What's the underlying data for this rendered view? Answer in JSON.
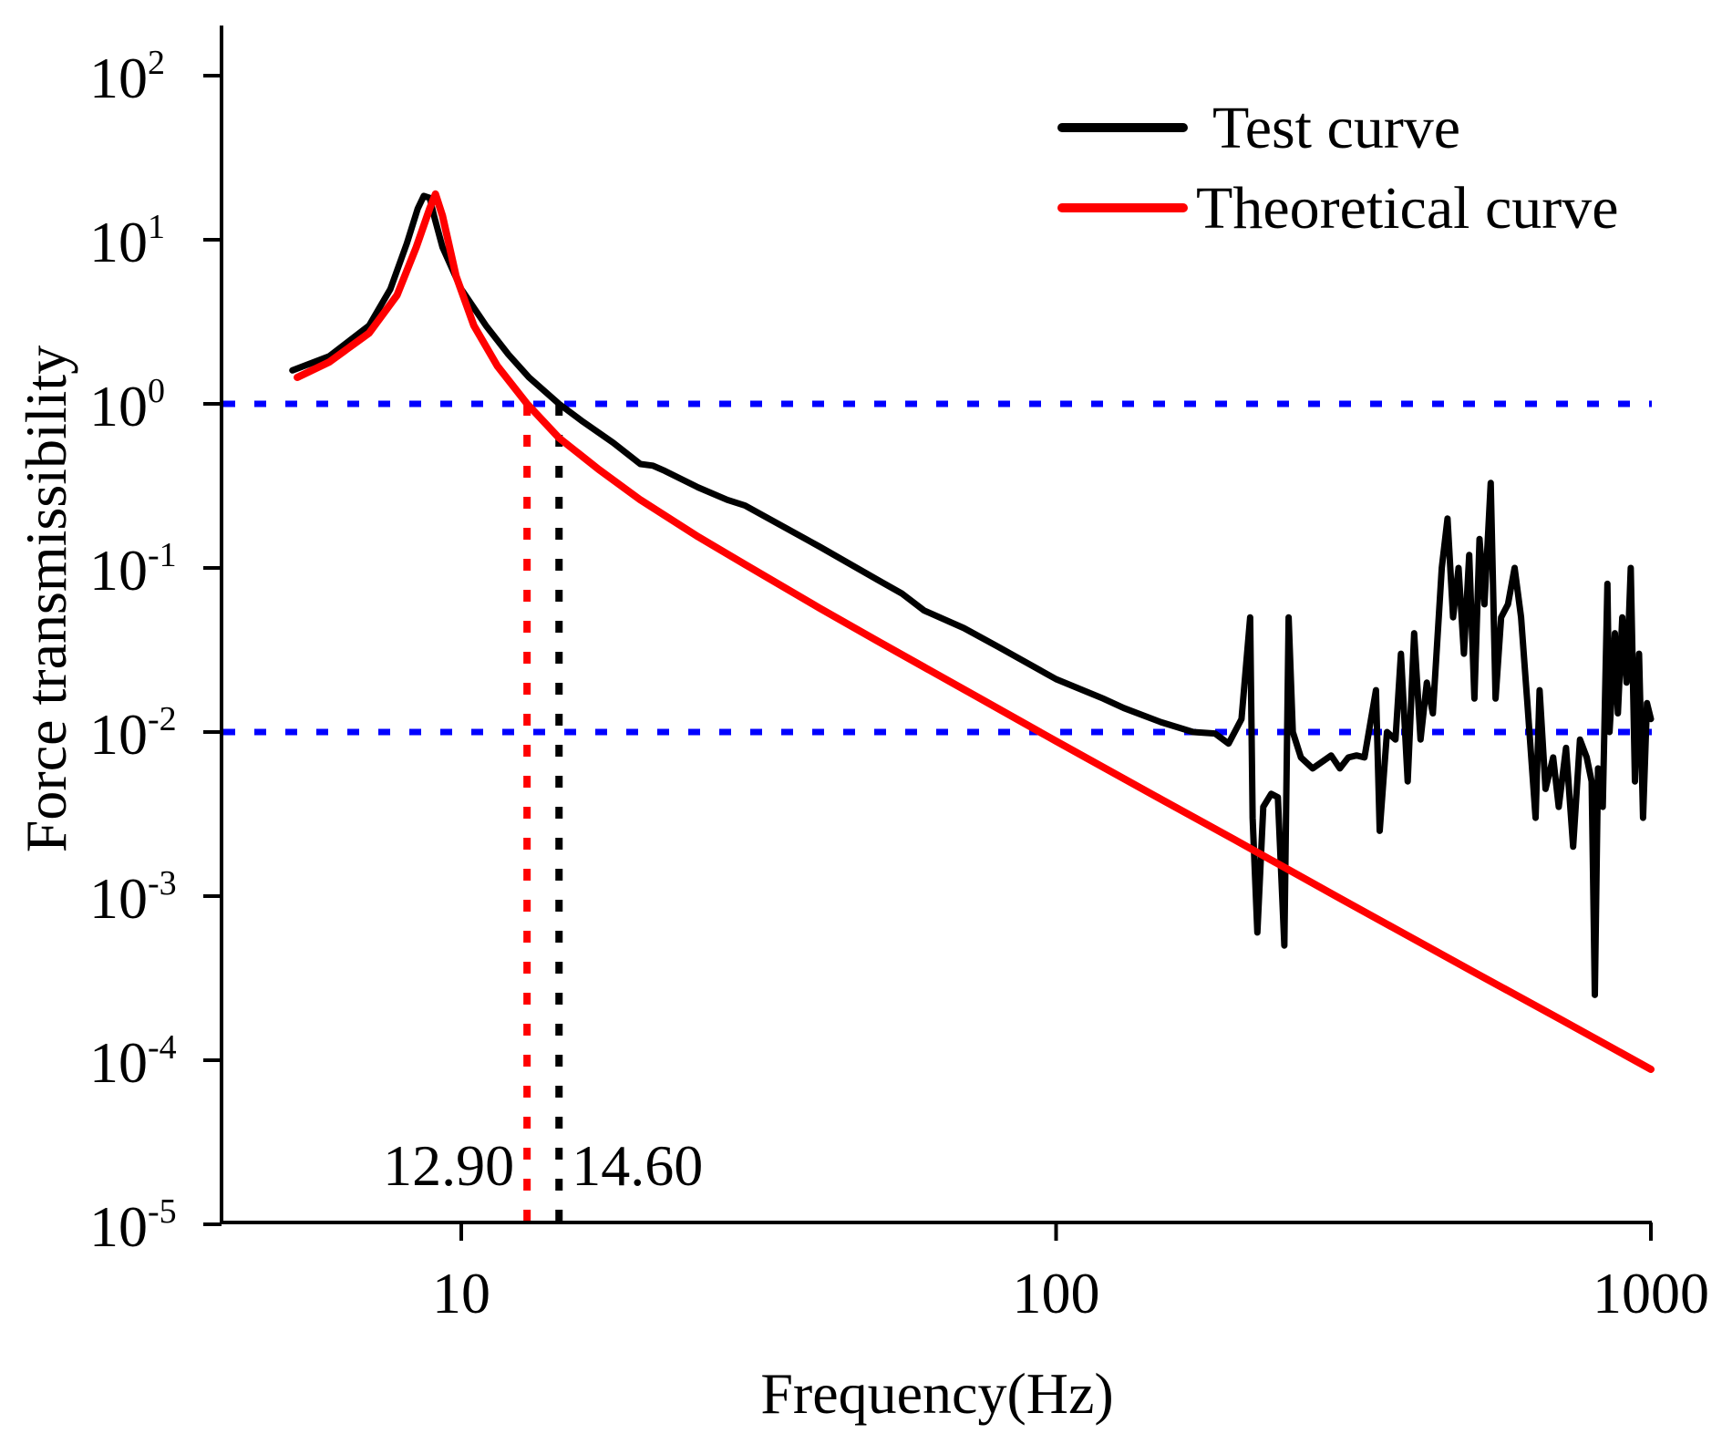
{
  "chart_data": {
    "type": "line",
    "xscale": "log",
    "yscale": "log",
    "xlabel": "Frequency(Hz)",
    "ylabel": "Force transmissibility",
    "xlim": [
      4.1,
      1000
    ],
    "ylim": [
      1e-05,
      200
    ],
    "x_ticks": [
      {
        "value": 10,
        "label": "10"
      },
      {
        "value": 100,
        "label": "100"
      },
      {
        "value": 1000,
        "label": "1000"
      }
    ],
    "y_ticks": [
      {
        "value": 100,
        "base": "10",
        "exp": "2"
      },
      {
        "value": 10,
        "base": "10",
        "exp": "1"
      },
      {
        "value": 1,
        "base": "10",
        "exp": "0"
      },
      {
        "value": 0.1,
        "base": "10",
        "exp": "-1"
      },
      {
        "value": 0.01,
        "base": "10",
        "exp": "-2"
      },
      {
        "value": 0.001,
        "base": "10",
        "exp": "-3"
      },
      {
        "value": 0.0001,
        "base": "10",
        "exp": "-4"
      },
      {
        "value": 1e-05,
        "base": "10",
        "exp": "-5"
      }
    ],
    "legend": {
      "position": "top-right"
    },
    "series": [
      {
        "name": "Test curve",
        "color": "#000000",
        "points": [
          [
            5.2,
            1.6
          ],
          [
            6.0,
            1.95
          ],
          [
            7.0,
            3.0
          ],
          [
            7.6,
            5.0
          ],
          [
            8.1,
            9.5
          ],
          [
            8.45,
            15.5
          ],
          [
            8.65,
            18.5
          ],
          [
            8.85,
            18.0
          ],
          [
            9.0,
            14.0
          ],
          [
            9.3,
            9.0
          ],
          [
            10.0,
            5.0
          ],
          [
            11.0,
            3.0
          ],
          [
            12.0,
            2.0
          ],
          [
            13.0,
            1.45
          ],
          [
            14.6,
            1.0
          ],
          [
            16.0,
            0.78
          ],
          [
            18.0,
            0.58
          ],
          [
            20.0,
            0.43
          ],
          [
            21.0,
            0.42
          ],
          [
            22.0,
            0.39
          ],
          [
            25.0,
            0.31
          ],
          [
            28.0,
            0.26
          ],
          [
            30.0,
            0.24
          ],
          [
            40.0,
            0.135
          ],
          [
            50.0,
            0.085
          ],
          [
            55.0,
            0.07
          ],
          [
            60.0,
            0.055
          ],
          [
            70.0,
            0.043
          ],
          [
            80.0,
            0.033
          ],
          [
            100.0,
            0.021
          ],
          [
            120.0,
            0.016
          ],
          [
            130.0,
            0.014
          ],
          [
            150.0,
            0.0115
          ],
          [
            170.0,
            0.01
          ],
          [
            185.0,
            0.0098
          ],
          [
            195.0,
            0.0085
          ],
          [
            205.0,
            0.012
          ],
          [
            212.0,
            0.05
          ],
          [
            214.0,
            0.003
          ],
          [
            218.0,
            0.0006
          ],
          [
            223.0,
            0.0035
          ],
          [
            230.0,
            0.0042
          ],
          [
            236.0,
            0.004
          ],
          [
            242.0,
            0.0005
          ],
          [
            246.0,
            0.05
          ],
          [
            250.0,
            0.01
          ],
          [
            258.0,
            0.007
          ],
          [
            270.0,
            0.006
          ],
          [
            290.0,
            0.0072
          ],
          [
            300.0,
            0.006
          ],
          [
            310.0,
            0.007
          ],
          [
            320.0,
            0.0072
          ],
          [
            330.0,
            0.007
          ],
          [
            345.0,
            0.018
          ],
          [
            350.0,
            0.0025
          ],
          [
            360.0,
            0.01
          ],
          [
            372.0,
            0.009
          ],
          [
            380.0,
            0.03
          ],
          [
            390.0,
            0.005
          ],
          [
            400.0,
            0.04
          ],
          [
            410.0,
            0.009
          ],
          [
            420.0,
            0.02
          ],
          [
            430.0,
            0.013
          ],
          [
            445.0,
            0.1
          ],
          [
            455.0,
            0.2
          ],
          [
            465.0,
            0.05
          ],
          [
            475.0,
            0.1
          ],
          [
            485.0,
            0.03
          ],
          [
            495.0,
            0.12
          ],
          [
            505.0,
            0.016
          ],
          [
            515.0,
            0.15
          ],
          [
            525.0,
            0.06
          ],
          [
            538.0,
            0.33
          ],
          [
            548.0,
            0.016
          ],
          [
            560.0,
            0.05
          ],
          [
            575.0,
            0.06
          ],
          [
            590.0,
            0.1
          ],
          [
            605.0,
            0.05
          ],
          [
            620.0,
            0.015
          ],
          [
            640.0,
            0.003
          ],
          [
            650.0,
            0.018
          ],
          [
            665.0,
            0.0045
          ],
          [
            685.0,
            0.007
          ],
          [
            700.0,
            0.0035
          ],
          [
            720.0,
            0.008
          ],
          [
            740.0,
            0.002
          ],
          [
            760.0,
            0.009
          ],
          [
            780.0,
            0.007
          ],
          [
            795.0,
            0.005
          ],
          [
            805.0,
            0.00025
          ],
          [
            815.0,
            0.006
          ],
          [
            830.0,
            0.0035
          ],
          [
            845.0,
            0.08
          ],
          [
            852.0,
            0.01
          ],
          [
            860.0,
            0.018
          ],
          [
            870.0,
            0.04
          ],
          [
            880.0,
            0.013
          ],
          [
            895.0,
            0.05
          ],
          [
            910.0,
            0.02
          ],
          [
            925.0,
            0.1
          ],
          [
            940.0,
            0.005
          ],
          [
            955.0,
            0.03
          ],
          [
            970.0,
            0.003
          ],
          [
            985.0,
            0.015
          ],
          [
            1000.0,
            0.012
          ]
        ]
      },
      {
        "name": "Theoretical curve",
        "color": "#ff0000",
        "points": [
          [
            5.3,
            1.45
          ],
          [
            6.0,
            1.8
          ],
          [
            7.0,
            2.7
          ],
          [
            7.8,
            4.6
          ],
          [
            8.4,
            9.0
          ],
          [
            8.85,
            15.5
          ],
          [
            9.05,
            19.0
          ],
          [
            9.3,
            14.0
          ],
          [
            9.8,
            6.0
          ],
          [
            10.5,
            3.0
          ],
          [
            11.5,
            1.7
          ],
          [
            12.9,
            1.0
          ],
          [
            14.6,
            0.62
          ],
          [
            17.0,
            0.4
          ],
          [
            20.0,
            0.26
          ],
          [
            25.0,
            0.155
          ],
          [
            30.0,
            0.105
          ],
          [
            40.0,
            0.057
          ],
          [
            50.0,
            0.036
          ],
          [
            70.0,
            0.0182
          ],
          [
            100.0,
            0.0088
          ],
          [
            150.0,
            0.0039
          ],
          [
            200.0,
            0.0022
          ],
          [
            300.0,
            0.00097
          ],
          [
            500.0,
            0.00035
          ],
          [
            700.0,
            0.00018
          ],
          [
            1000.0,
            8.8e-05
          ]
        ]
      }
    ],
    "reference_lines": [
      {
        "orientation": "horizontal",
        "y": 1,
        "color": "#0000ff",
        "style": "dotted"
      },
      {
        "orientation": "horizontal",
        "y": 0.01,
        "color": "#0000ff",
        "style": "dotted"
      },
      {
        "orientation": "vertical",
        "x": 12.9,
        "y_top": 1,
        "color": "#ff0000",
        "style": "dotted",
        "label": "12.90"
      },
      {
        "orientation": "vertical",
        "x": 14.6,
        "y_top": 1,
        "color": "#000000",
        "style": "dotted",
        "label": "14.60"
      }
    ]
  }
}
